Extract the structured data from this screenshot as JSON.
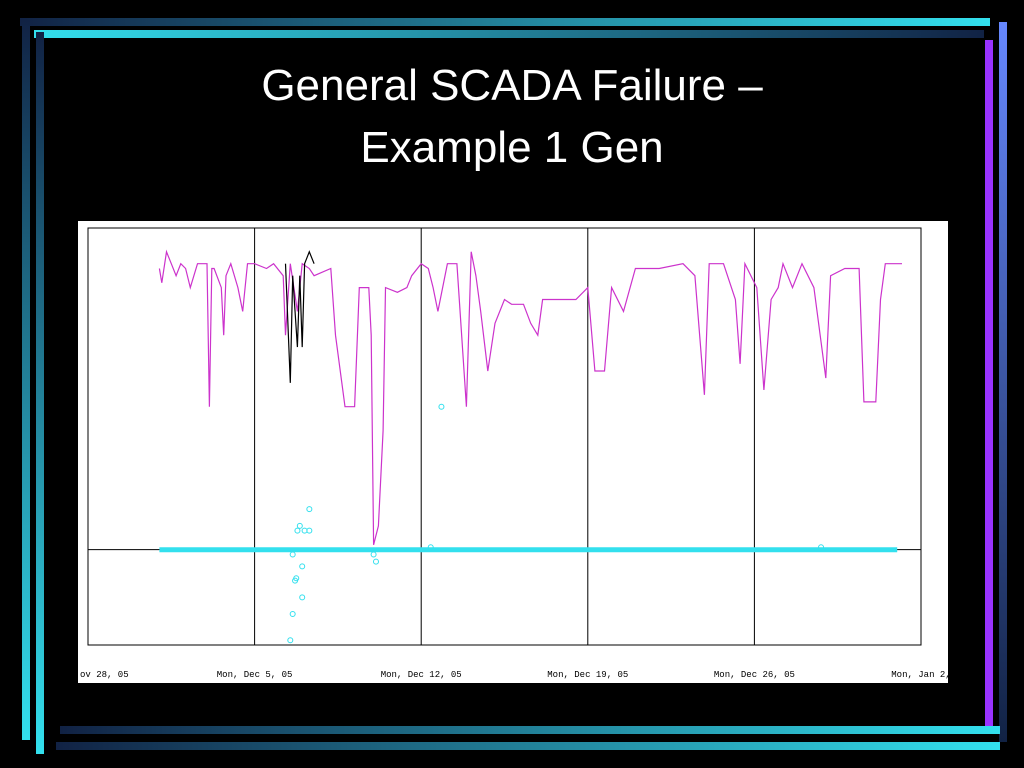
{
  "chart_data": {
    "type": "line",
    "title_lines": [
      "General SCADA Failure –",
      "Example 1 Gen"
    ],
    "xlim": [
      0,
      35
    ],
    "ylim": [
      -40,
      135
    ],
    "grid": true,
    "zero_line": true,
    "xticks": [
      {
        "value": 0,
        "label": "ov 28, 05"
      },
      {
        "value": 7,
        "label": "Mon, Dec 5, 05"
      },
      {
        "value": 14,
        "label": "Mon, Dec 12, 05"
      },
      {
        "value": 21,
        "label": "Mon, Dec 19, 05"
      },
      {
        "value": 28,
        "label": "Mon, Dec 26, 05"
      },
      {
        "value": 35,
        "label": "Mon, Jan 2,"
      }
    ],
    "series": [
      {
        "color": "#cc33cc",
        "marker": false,
        "x": [
          3.0,
          3.1,
          3.3,
          3.5,
          3.7,
          3.9,
          4.1,
          4.3,
          4.6,
          5.0,
          5.1,
          5.2,
          5.3,
          5.6,
          5.7,
          5.8,
          6.0,
          6.3,
          6.5,
          6.7,
          7.0,
          7.5,
          7.8,
          8.2,
          8.3,
          8.5,
          8.8,
          9.0,
          9.3,
          9.5,
          10.2,
          10.4,
          10.8,
          11.2,
          11.4,
          11.8,
          11.9,
          12.0,
          12.2,
          12.4,
          12.5,
          13.0,
          13.4,
          13.6,
          14.0,
          14.3,
          14.5,
          14.7,
          15.1,
          15.5,
          15.9,
          16.1,
          16.3,
          16.5,
          16.8,
          17.1,
          17.5,
          17.8,
          18.3,
          18.6,
          18.9,
          19.1,
          19.5,
          20.5,
          21.0,
          21.3,
          21.7,
          22.0,
          22.5,
          23.0,
          24.0,
          25.0,
          25.5,
          25.9,
          26.1,
          26.7,
          27.2,
          27.4,
          27.6,
          28.1,
          28.4,
          28.7,
          29.0,
          29.2,
          29.6,
          30.0,
          30.5,
          31.0,
          31.2,
          31.8,
          32.4,
          32.6,
          33.1,
          33.3,
          33.5,
          34.2
        ],
        "values": [
          118,
          112,
          125,
          120,
          115,
          120,
          118,
          110,
          120,
          120,
          60,
          118,
          118,
          110,
          90,
          115,
          120,
          110,
          100,
          120,
          120,
          118,
          120,
          115,
          90,
          120,
          100,
          120,
          118,
          115,
          118,
          90,
          60,
          60,
          110,
          110,
          90,
          2,
          10,
          50,
          110,
          108,
          110,
          115,
          120,
          118,
          110,
          100,
          120,
          120,
          60,
          125,
          115,
          100,
          75,
          95,
          105,
          103,
          103,
          95,
          90,
          105,
          105,
          105,
          110,
          75,
          75,
          110,
          100,
          118,
          118,
          120,
          115,
          65,
          120,
          120,
          105,
          78,
          120,
          110,
          67,
          105,
          110,
          120,
          110,
          120,
          110,
          72,
          115,
          118,
          118,
          62,
          62,
          105,
          120,
          120
        ]
      },
      {
        "color": "#000000",
        "marker": false,
        "x": [
          8.3,
          8.5,
          8.6,
          8.8,
          8.9,
          9.0,
          9.1,
          9.3,
          9.5
        ],
        "values": [
          120,
          70,
          115,
          85,
          115,
          85,
          120,
          125,
          120
        ]
      },
      {
        "color": "#33e0ee",
        "marker": false,
        "thick": true,
        "x": [
          3.0,
          34.0
        ],
        "values": [
          0,
          0
        ]
      },
      {
        "color": "#33e0ee",
        "marker": true,
        "x": [
          8.5,
          8.6,
          8.7,
          8.75,
          8.8,
          8.9,
          9.0,
          9.0,
          9.1,
          9.3,
          9.3,
          8.6,
          12.0,
          12.1,
          14.4,
          14.85,
          30.8
        ],
        "values": [
          -38,
          -27,
          -13,
          -12,
          8,
          10,
          -7,
          -20,
          8,
          17,
          8,
          -2,
          -2,
          -5,
          1,
          60,
          1
        ]
      }
    ]
  }
}
